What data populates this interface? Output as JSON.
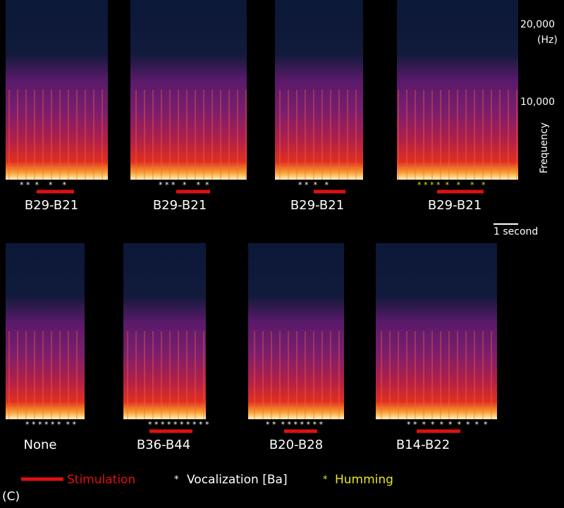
{
  "panels": [
    {
      "label": "B29-B21",
      "marks": "* *  *    *    *",
      "marks_color": "#ffffff"
    },
    {
      "label": "B29-B21",
      "marks": "* * *   *    *  *",
      "marks_color": "#ffffff"
    },
    {
      "label": "B29-B21",
      "marks": "* *  *   *",
      "marks_color": "#ffffff"
    },
    {
      "label": "B29-B21",
      "marks": "* * * *  *   *    *   *",
      "marks_color": "#e6e619"
    },
    {
      "label": "None",
      "marks": "* * * * * *  * *",
      "marks_color": "#ffffff"
    },
    {
      "label": "B36-B44",
      "marks": "* * * * * * * * * *",
      "marks_color": "#ffffff"
    },
    {
      "label": "B20-B28",
      "marks": "* *  * * * * * * *",
      "marks_color": "#ffffff"
    },
    {
      "label": "B14-B22",
      "marks": "* *  *  *  *  *  *  *  *  *",
      "marks_color": "#ffffff"
    }
  ],
  "axis": {
    "ticks": [
      "20,000",
      "(Hz)",
      "10,000"
    ],
    "label": "Frequency"
  },
  "scale_bar": "1 second",
  "legend": {
    "stimulation": "Stimulation",
    "vocalization_marker": "*",
    "vocalization": "Vocalization [Ba]",
    "humming_marker": "*",
    "humming": "Humming"
  },
  "panel_id": "(C)"
}
